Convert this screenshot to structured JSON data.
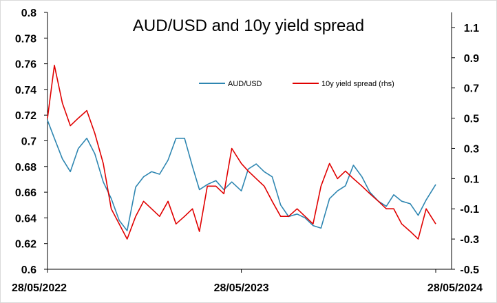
{
  "chart_data": {
    "type": "line",
    "title": "AUD/USD and 10y yield spread",
    "colors": {
      "audusd": "#2e86b1",
      "spread": "#e00000",
      "axis": "#000000"
    },
    "legend": {
      "placement": "top-right"
    },
    "grid": false,
    "x_range": [
      "2022-05-28",
      "2024-05-28"
    ],
    "x_ticks": [
      "28/05/2022",
      "28/05/2023",
      "28/05/2024"
    ],
    "y_left": {
      "range": [
        0.6,
        0.8
      ],
      "ticks": [
        "0.6",
        "0.62",
        "0.64",
        "0.66",
        "0.68",
        "0.7",
        "0.72",
        "0.74",
        "0.76",
        "0.78",
        "0.8"
      ]
    },
    "y_right": {
      "range": [
        -0.5,
        1.2
      ],
      "ticks": [
        "-0.5",
        "-0.3",
        "-0.1",
        "0.1",
        "0.3",
        "0.5",
        "0.7",
        "0.9",
        "1.1"
      ]
    },
    "series": [
      {
        "name": "AUD/USD",
        "axis": "left",
        "x": [
          "2022-05-28",
          "2022-06-10",
          "2022-06-25",
          "2022-07-10",
          "2022-07-25",
          "2022-08-10",
          "2022-08-25",
          "2022-09-10",
          "2022-09-25",
          "2022-10-10",
          "2022-10-25",
          "2022-11-10",
          "2022-11-25",
          "2022-12-10",
          "2022-12-25",
          "2023-01-10",
          "2023-01-25",
          "2023-02-10",
          "2023-02-25",
          "2023-03-10",
          "2023-03-25",
          "2023-04-10",
          "2023-04-25",
          "2023-05-10",
          "2023-05-28",
          "2023-06-10",
          "2023-06-25",
          "2023-07-10",
          "2023-07-25",
          "2023-08-10",
          "2023-08-25",
          "2023-09-10",
          "2023-09-25",
          "2023-10-10",
          "2023-10-25",
          "2023-11-10",
          "2023-11-25",
          "2023-12-10",
          "2023-12-25",
          "2024-01-10",
          "2024-01-25",
          "2024-02-10",
          "2024-02-25",
          "2024-03-10",
          "2024-03-25",
          "2024-04-10",
          "2024-04-25",
          "2024-05-10",
          "2024-05-28"
        ],
        "values": [
          0.716,
          0.702,
          0.686,
          0.676,
          0.694,
          0.702,
          0.69,
          0.668,
          0.655,
          0.638,
          0.63,
          0.664,
          0.672,
          0.676,
          0.674,
          0.685,
          0.702,
          0.702,
          0.68,
          0.662,
          0.666,
          0.669,
          0.662,
          0.668,
          0.661,
          0.678,
          0.682,
          0.676,
          0.672,
          0.65,
          0.641,
          0.643,
          0.64,
          0.634,
          0.632,
          0.655,
          0.661,
          0.665,
          0.681,
          0.672,
          0.66,
          0.653,
          0.649,
          0.658,
          0.653,
          0.651,
          0.642,
          0.654,
          0.666
        ]
      },
      {
        "name": "10y yield spread (rhs)",
        "axis": "right",
        "x": [
          "2022-05-28",
          "2022-06-10",
          "2022-06-25",
          "2022-07-10",
          "2022-07-25",
          "2022-08-10",
          "2022-08-25",
          "2022-09-10",
          "2022-09-25",
          "2022-10-10",
          "2022-10-25",
          "2022-11-10",
          "2022-11-25",
          "2022-12-10",
          "2022-12-25",
          "2023-01-10",
          "2023-01-25",
          "2023-02-10",
          "2023-02-25",
          "2023-03-10",
          "2023-03-25",
          "2023-04-10",
          "2023-04-25",
          "2023-05-10",
          "2023-05-28",
          "2023-06-10",
          "2023-06-25",
          "2023-07-10",
          "2023-07-25",
          "2023-08-10",
          "2023-08-25",
          "2023-09-10",
          "2023-09-25",
          "2023-10-10",
          "2023-10-25",
          "2023-11-10",
          "2023-11-25",
          "2023-12-10",
          "2023-12-25",
          "2024-01-10",
          "2024-01-25",
          "2024-02-10",
          "2024-02-25",
          "2024-03-10",
          "2024-03-25",
          "2024-04-10",
          "2024-04-25",
          "2024-05-10",
          "2024-05-28"
        ],
        "values": [
          0.5,
          0.85,
          0.6,
          0.45,
          0.5,
          0.55,
          0.4,
          0.2,
          -0.1,
          -0.2,
          -0.3,
          -0.15,
          -0.05,
          -0.1,
          -0.15,
          -0.05,
          -0.2,
          -0.15,
          -0.1,
          -0.25,
          0.05,
          0.05,
          0.0,
          0.3,
          0.2,
          0.15,
          0.1,
          0.05,
          -0.05,
          -0.15,
          -0.15,
          -0.1,
          -0.15,
          -0.2,
          0.05,
          0.2,
          0.1,
          0.15,
          0.1,
          0.05,
          0.0,
          -0.05,
          -0.1,
          -0.1,
          -0.2,
          -0.25,
          -0.3,
          -0.1,
          -0.2
        ]
      }
    ]
  }
}
